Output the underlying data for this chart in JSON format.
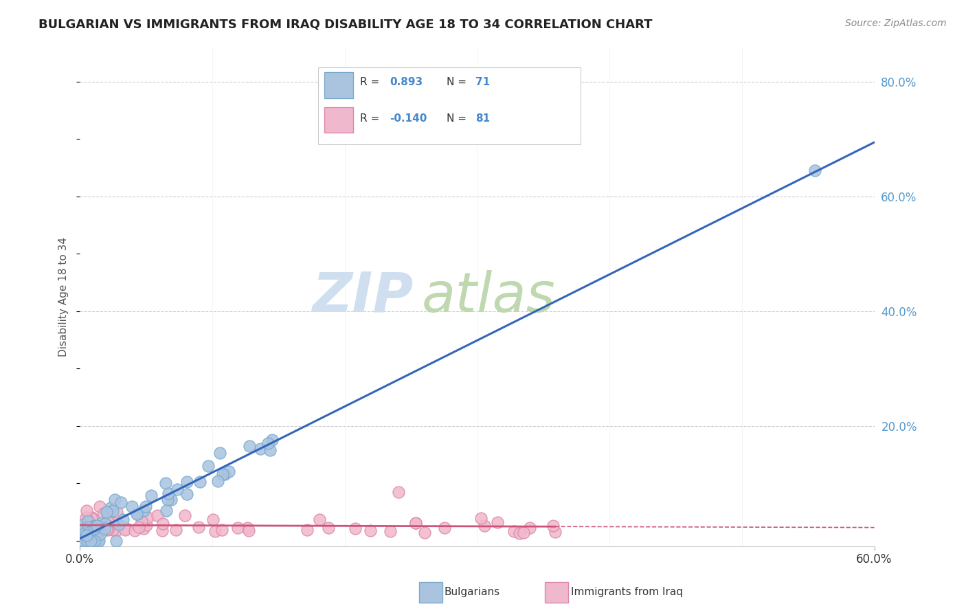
{
  "title": "BULGARIAN VS IMMIGRANTS FROM IRAQ DISABILITY AGE 18 TO 34 CORRELATION CHART",
  "source": "Source: ZipAtlas.com",
  "ylabel": "Disability Age 18 to 34",
  "xlim": [
    0,
    0.6
  ],
  "ylim": [
    -0.01,
    0.86
  ],
  "y_tick_vals_right": [
    0.2,
    0.4,
    0.6,
    0.8
  ],
  "bulgarian_R": 0.893,
  "bulgarian_N": 71,
  "iraq_R": -0.14,
  "iraq_N": 81,
  "bg_color": "#ffffff",
  "grid_color": "#cccccc",
  "blue_scatter_face": "#aac4e0",
  "blue_scatter_edge": "#7aaacc",
  "blue_line_color": "#3366bb",
  "pink_scatter_face": "#f0b8cc",
  "pink_scatter_edge": "#dd88aa",
  "pink_line_color": "#cc5577",
  "watermark_zip_color": "#d0dff0",
  "watermark_atlas_color": "#c0d8b0",
  "title_color": "#222222",
  "axis_label_color": "#555555",
  "right_label_color": "#5599cc",
  "legend_text_color": "#333333",
  "legend_val_color": "#4488cc",
  "source_color": "#888888"
}
